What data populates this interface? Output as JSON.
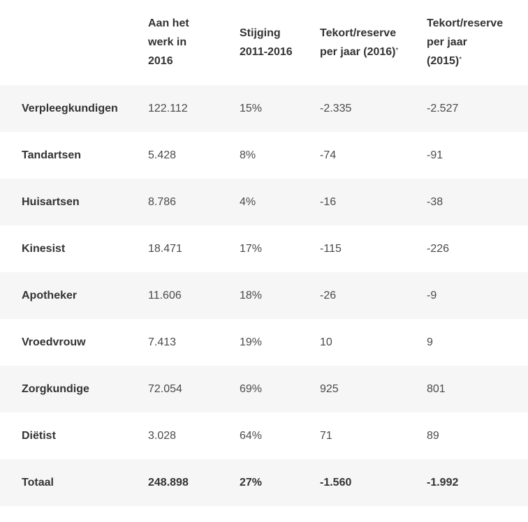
{
  "header": {
    "col1": [
      "Aan het",
      "werk in",
      "2016"
    ],
    "col2": [
      "Stijging",
      "2011-2016"
    ],
    "col3": [
      "Tekort/reserve",
      "per jaar (2016)"
    ],
    "col3_mark": "*",
    "col4": [
      "Tekort/reserve",
      "per jaar",
      "(2015)"
    ],
    "col4_mark": "*"
  },
  "rows": [
    {
      "name": "Verpleegkundigen",
      "werk": "122.112",
      "stijging": "15%",
      "t2016": "-2.335",
      "t2015": "-2.527"
    },
    {
      "name": "Tandartsen",
      "werk": "5.428",
      "stijging": "8%",
      "t2016": "-74",
      "t2015": "-91"
    },
    {
      "name": "Huisartsen",
      "werk": "8.786",
      "stijging": "4%",
      "t2016": "-16",
      "t2015": "-38"
    },
    {
      "name": "Kinesist",
      "werk": "18.471",
      "stijging": "17%",
      "t2016": "-115",
      "t2015": "-226"
    },
    {
      "name": "Apotheker",
      "werk": "11.606",
      "stijging": "18%",
      "t2016": "-26",
      "t2015": "-9"
    },
    {
      "name": "Vroedvrouw",
      "werk": "7.413",
      "stijging": "19%",
      "t2016": "10",
      "t2015": "9"
    },
    {
      "name": "Zorgkundige",
      "werk": "72.054",
      "stijging": "69%",
      "t2016": "925",
      "t2015": "801"
    },
    {
      "name": "Diëtist",
      "werk": "3.028",
      "stijging": "64%",
      "t2016": "71",
      "t2015": "89"
    },
    {
      "name": "Totaal",
      "werk": "248.898",
      "stijging": "27%",
      "t2016": "-1.560",
      "t2015": "-1.992"
    }
  ],
  "colors": {
    "stripe": "#f6f6f6",
    "text": "#333333"
  }
}
